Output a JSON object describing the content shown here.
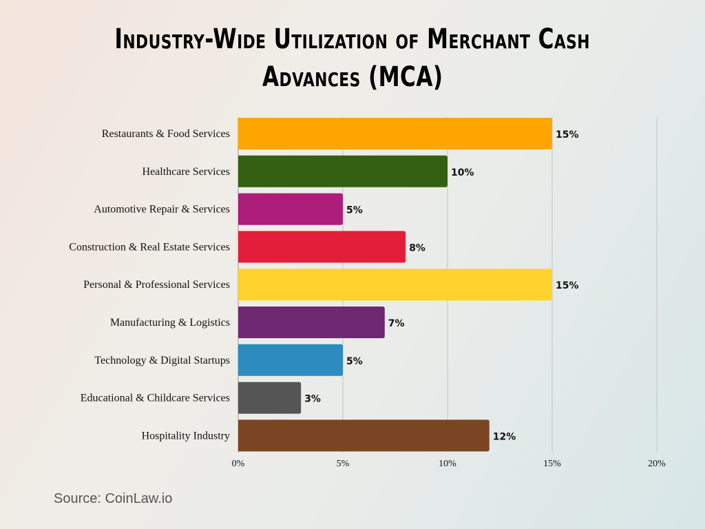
{
  "chart_data": {
    "type": "bar",
    "orientation": "horizontal",
    "title_line1": "Industry-Wide Utilization of Merchant Cash",
    "title_line2": "Advances (MCA)",
    "categories": [
      "Restaurants & Food Services",
      "Healthcare Services",
      "Automotive Repair & Services",
      "Construction & Real Estate Services",
      "Personal & Professional Services",
      "Manufacturing & Logistics",
      "Technology & Digital Startups",
      "Educational & Childcare Services",
      "Hospitality Industry"
    ],
    "values": [
      15,
      10,
      5,
      8,
      15,
      7,
      5,
      3,
      12
    ],
    "data_labels": [
      "15%",
      "10%",
      "5%",
      "8%",
      "15%",
      "7%",
      "5%",
      "3%",
      "12%"
    ],
    "colors": [
      "#FFA500",
      "#336111",
      "#AD1D7A",
      "#E31E3A",
      "#FFD22E",
      "#6F2872",
      "#2E8BBF",
      "#555555",
      "#7B4524"
    ],
    "xlim": [
      0,
      20
    ],
    "xticks": [
      0,
      5,
      10,
      15,
      20
    ],
    "xtick_labels": [
      "0%",
      "5%",
      "10%",
      "15%",
      "20%"
    ],
    "grid": "vertical",
    "legend": "none"
  },
  "source": "Source: CoinLaw.io"
}
